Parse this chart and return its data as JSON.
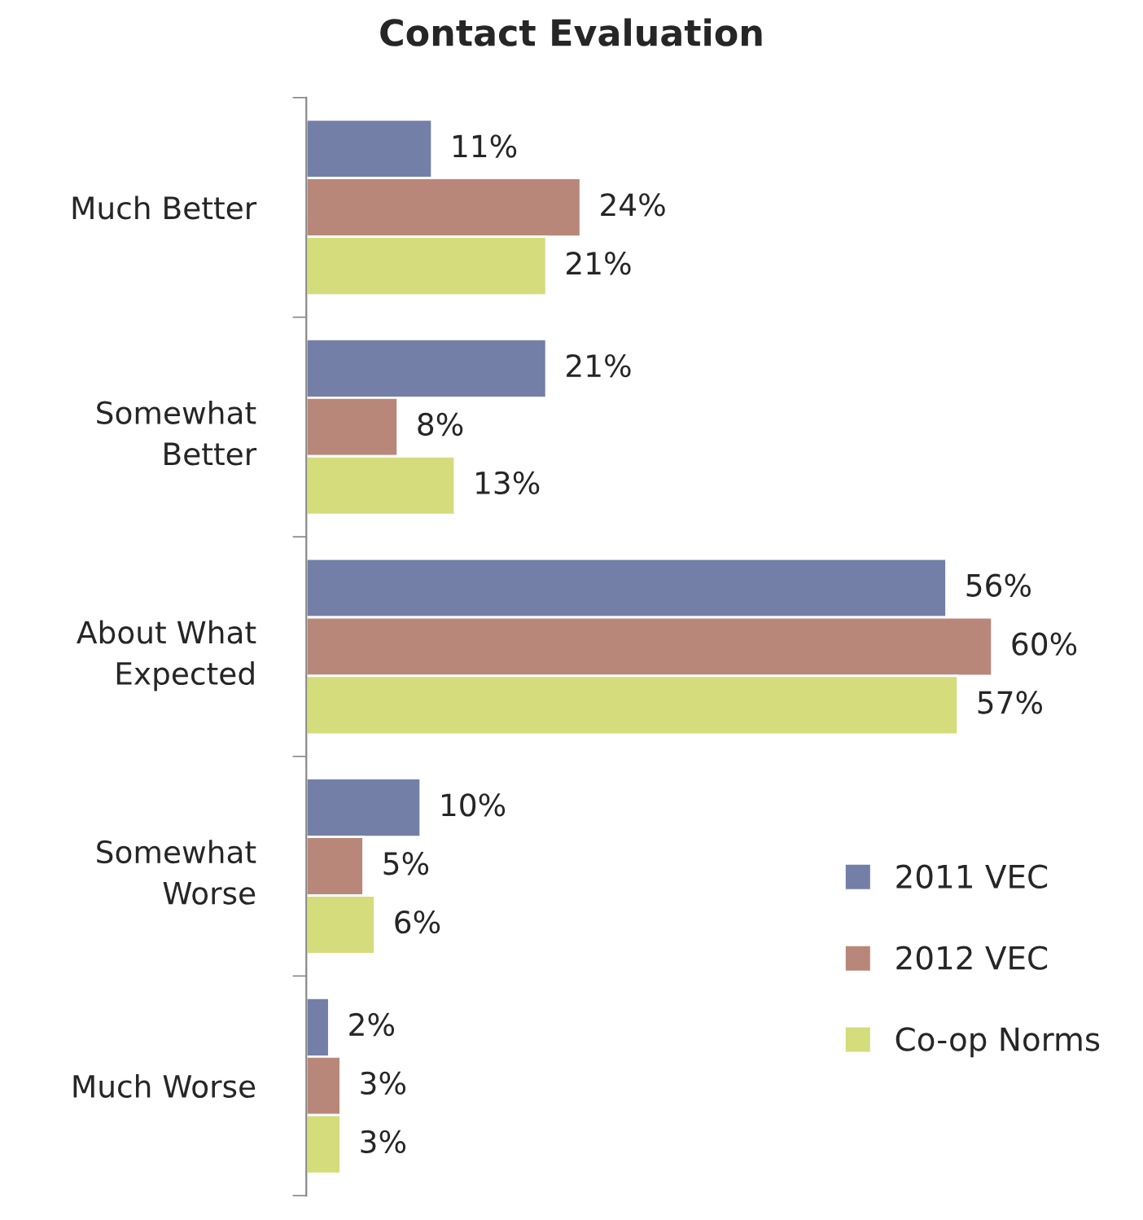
{
  "chart_data": {
    "type": "bar",
    "orientation": "horizontal",
    "title": "Contact Evaluation",
    "categories": [
      "Much Better",
      "Somewhat Better",
      "About What Expected",
      "Somewhat Worse",
      "Much Worse"
    ],
    "series": [
      {
        "name": "2011 VEC",
        "color": "#737fa6",
        "values": [
          11,
          21,
          56,
          10,
          2
        ],
        "value_labels": [
          "11%",
          "21%",
          "56%",
          "10%",
          "2%"
        ]
      },
      {
        "name": "2012 VEC",
        "color": "#b8877a",
        "values": [
          24,
          8,
          60,
          5,
          3
        ],
        "value_labels": [
          "24%",
          "8%",
          "60%",
          "5%",
          "3%"
        ]
      },
      {
        "name": "Co-op Norms",
        "color": "#d4dc7c",
        "values": [
          21,
          13,
          57,
          6,
          3
        ],
        "value_labels": [
          "21%",
          "13%",
          "57%",
          "6%",
          "3%"
        ]
      }
    ],
    "legend": "bottom right",
    "grid": false
  }
}
